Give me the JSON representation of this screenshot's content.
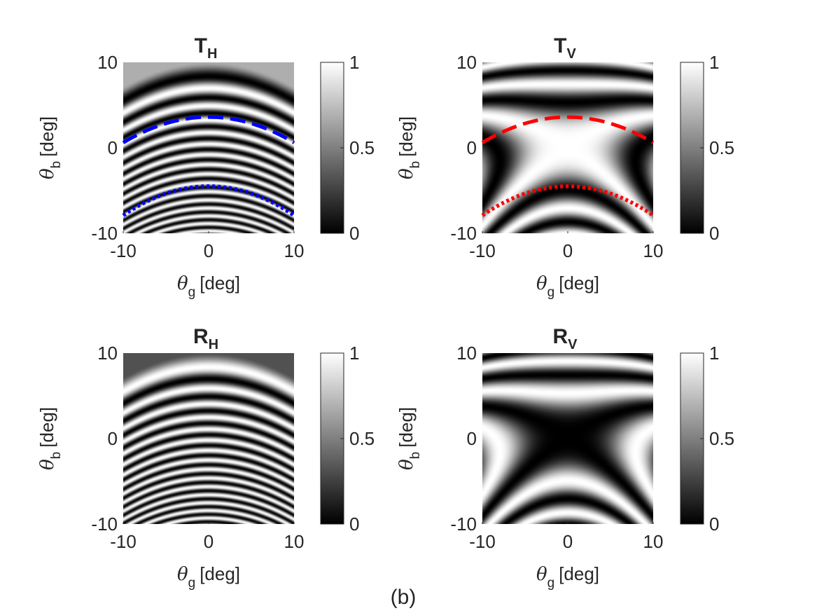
{
  "figure_label": "(b)",
  "colors": {
    "dashed": [
      "#0000ff",
      "#ff0000"
    ],
    "dotted": [
      "#0000ff",
      "#ff0000"
    ]
  },
  "chart_data": [
    {
      "type": "heatmap",
      "title": "T",
      "title_sub": "H",
      "xlabel": {
        "symbol": "θ",
        "sub": "g",
        "unit": "[deg]"
      },
      "ylabel": {
        "symbol": "θ",
        "sub": "b",
        "unit": "[deg]"
      },
      "xlim": [
        -10,
        10
      ],
      "ylim": [
        -10,
        10
      ],
      "xticks": [
        "-10",
        "0",
        "10"
      ],
      "yticks": [
        "-10",
        "0",
        "10"
      ],
      "colormap": "gray",
      "clim": [
        0,
        1
      ],
      "colorbar_ticks": [
        "0",
        "0.5",
        "1"
      ],
      "pattern": "TH",
      "curves": [
        {
          "style": "dashed",
          "color": "#0000ff",
          "y_at_center": 3.6,
          "y_at_edges": 0.6
        },
        {
          "style": "dotted",
          "color": "#0000ff",
          "y_at_center": -4.5,
          "y_at_edges": -7.9
        }
      ]
    },
    {
      "type": "heatmap",
      "title": "T",
      "title_sub": "V",
      "xlabel": {
        "symbol": "θ",
        "sub": "g",
        "unit": "[deg]"
      },
      "ylabel": {
        "symbol": "θ",
        "sub": "b",
        "unit": "[deg]"
      },
      "xlim": [
        -10,
        10
      ],
      "ylim": [
        -10,
        10
      ],
      "xticks": [
        "-10",
        "0",
        "10"
      ],
      "yticks": [
        "-10",
        "0",
        "10"
      ],
      "colormap": "gray",
      "clim": [
        0,
        1
      ],
      "colorbar_ticks": [
        "0",
        "0.5",
        "1"
      ],
      "pattern": "TV",
      "curves": [
        {
          "style": "dashed",
          "color": "#ff0000",
          "y_at_center": 3.6,
          "y_at_edges": 0.6
        },
        {
          "style": "dotted",
          "color": "#ff0000",
          "y_at_center": -4.5,
          "y_at_edges": -7.9
        }
      ]
    },
    {
      "type": "heatmap",
      "title": "R",
      "title_sub": "H",
      "xlabel": {
        "symbol": "θ",
        "sub": "g",
        "unit": "[deg]"
      },
      "ylabel": {
        "symbol": "θ",
        "sub": "b",
        "unit": "[deg]"
      },
      "xlim": [
        -10,
        10
      ],
      "ylim": [
        -10,
        10
      ],
      "xticks": [
        "-10",
        "0",
        "10"
      ],
      "yticks": [
        "-10",
        "0",
        "10"
      ],
      "colormap": "gray",
      "clim": [
        0,
        1
      ],
      "colorbar_ticks": [
        "0",
        "0.5",
        "1"
      ],
      "pattern": "RH",
      "curves": []
    },
    {
      "type": "heatmap",
      "title": "R",
      "title_sub": "V",
      "xlabel": {
        "symbol": "θ",
        "sub": "g",
        "unit": "[deg]"
      },
      "ylabel": {
        "symbol": "θ",
        "sub": "b",
        "unit": "[deg]"
      },
      "xlim": [
        -10,
        10
      ],
      "ylim": [
        -10,
        10
      ],
      "xticks": [
        "-10",
        "0",
        "10"
      ],
      "yticks": [
        "-10",
        "0",
        "10"
      ],
      "colormap": "gray",
      "clim": [
        0,
        1
      ],
      "colorbar_ticks": [
        "0",
        "0.5",
        "1"
      ],
      "pattern": "RV",
      "curves": []
    }
  ]
}
